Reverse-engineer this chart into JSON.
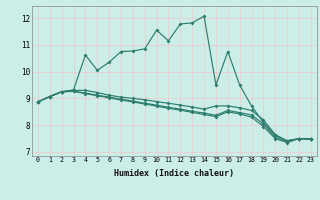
{
  "xlabel": "Humidex (Indice chaleur)",
  "xlim": [
    -0.5,
    23.5
  ],
  "ylim": [
    6.85,
    12.45
  ],
  "yticks": [
    7,
    8,
    9,
    10,
    11,
    12
  ],
  "xticks": [
    0,
    1,
    2,
    3,
    4,
    5,
    6,
    7,
    8,
    9,
    10,
    11,
    12,
    13,
    14,
    15,
    16,
    17,
    18,
    19,
    20,
    21,
    22,
    23
  ],
  "bg_color": "#cceee8",
  "grid_color": "#f0c8c8",
  "line_color": "#2d7d6e",
  "curve1_y": [
    8.87,
    9.07,
    9.25,
    9.32,
    10.62,
    10.05,
    10.35,
    10.75,
    10.77,
    10.85,
    11.55,
    11.15,
    11.78,
    11.82,
    12.07,
    9.5,
    10.75,
    9.5,
    8.72,
    8.1,
    7.62,
    7.42,
    7.5,
    7.48
  ],
  "curve2_y": [
    8.87,
    9.07,
    9.25,
    9.3,
    9.3,
    9.22,
    9.12,
    9.05,
    9.0,
    8.95,
    8.88,
    8.82,
    8.75,
    8.68,
    8.6,
    8.72,
    8.72,
    8.65,
    8.55,
    8.2,
    7.65,
    7.42,
    7.5,
    7.48
  ],
  "curve3_y": [
    8.87,
    9.07,
    9.25,
    9.27,
    9.2,
    9.12,
    9.05,
    8.97,
    8.9,
    8.82,
    8.75,
    8.67,
    8.6,
    8.52,
    8.45,
    8.37,
    8.55,
    8.47,
    8.38,
    8.05,
    7.55,
    7.38,
    7.5,
    7.48
  ],
  "curve4_y": [
    8.87,
    9.07,
    9.25,
    9.26,
    9.18,
    9.1,
    9.02,
    8.94,
    8.87,
    8.79,
    8.71,
    8.63,
    8.56,
    8.48,
    8.4,
    8.32,
    8.5,
    8.42,
    8.3,
    7.95,
    7.5,
    7.35,
    7.5,
    7.48
  ]
}
